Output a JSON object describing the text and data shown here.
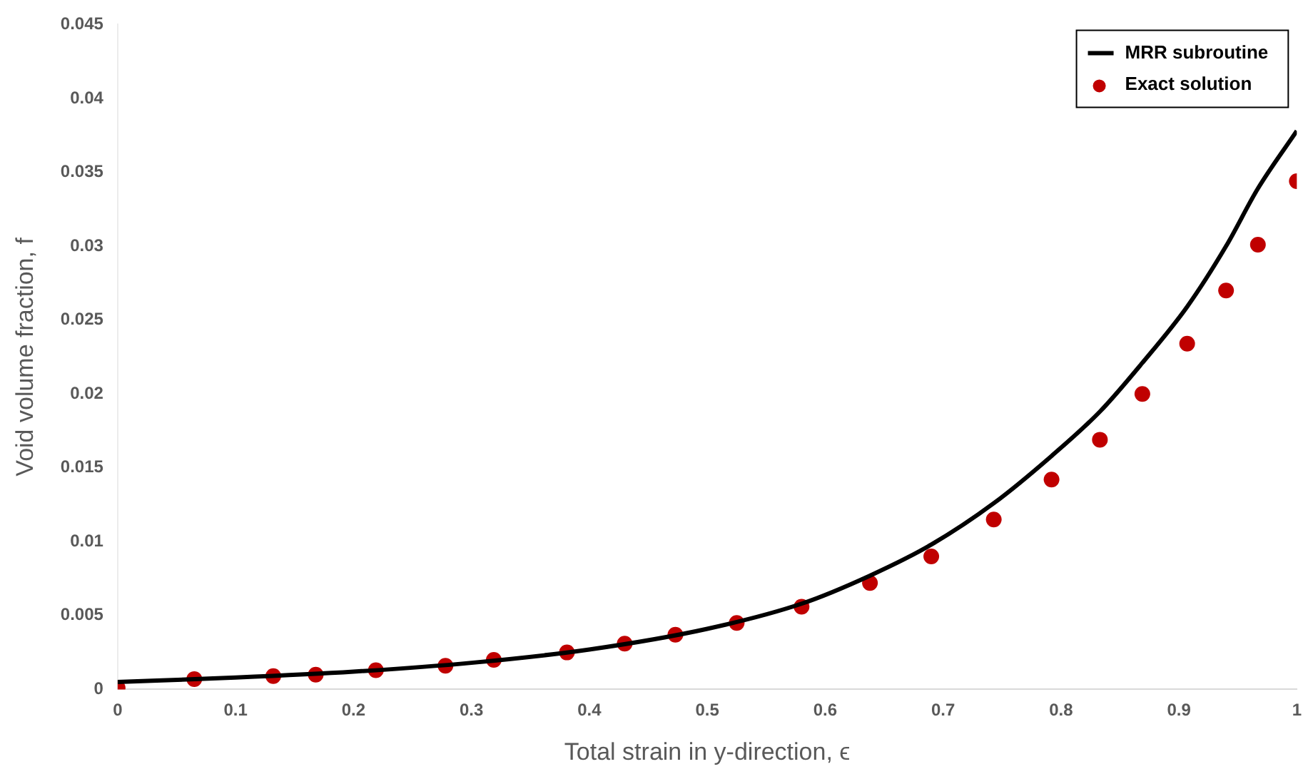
{
  "chart_data": {
    "type": "scatter",
    "xlabel": "Total strain in y-direction, ϵ",
    "ylabel": "Void volume fraction, f",
    "xlim": [
      0,
      1
    ],
    "xticks": [
      0,
      0.1,
      0.2,
      0.3,
      0.4,
      0.5,
      0.6,
      0.7,
      0.8,
      0.9,
      1
    ],
    "ylim": [
      0,
      0.045
    ],
    "yticks": [
      0,
      0.005,
      0.01,
      0.015,
      0.02,
      0.025,
      0.03,
      0.035,
      0.04,
      0.045
    ],
    "grid": false,
    "legend": "top right",
    "series": [
      {
        "name": "MRR subroutine",
        "type": "line",
        "color": "#000000",
        "marker": "none",
        "line_style": "solid",
        "x": [
          0,
          0.1,
          0.2,
          0.3,
          0.4,
          0.5,
          0.58,
          0.638,
          0.69,
          0.743,
          0.792,
          0.833,
          0.869,
          0.907,
          0.94,
          0.967,
          1
        ],
        "values": [
          0.0005,
          0.0008,
          0.0012,
          0.0018,
          0.0027,
          0.0041,
          0.0058,
          0.0077,
          0.0098,
          0.0126,
          0.0158,
          0.0188,
          0.0221,
          0.0259,
          0.03,
          0.0339,
          0.0378
        ]
      },
      {
        "name": "Exact solution",
        "type": "scatter",
        "color": "#c00000",
        "marker": "circle",
        "x": [
          0,
          0.065,
          0.132,
          0.168,
          0.219,
          0.278,
          0.319,
          0.381,
          0.43,
          0.473,
          0.525,
          0.58,
          0.638,
          0.69,
          0.743,
          0.792,
          0.833,
          0.869,
          0.907,
          0.94,
          0.967,
          1
        ],
        "values": [
          0.0001,
          0.0007,
          0.0009,
          0.001,
          0.0013,
          0.0016,
          0.002,
          0.0025,
          0.0031,
          0.0037,
          0.0045,
          0.0056,
          0.0072,
          0.009,
          0.0115,
          0.0142,
          0.0169,
          0.02,
          0.0234,
          0.027,
          0.0301,
          0.0344
        ]
      }
    ]
  }
}
